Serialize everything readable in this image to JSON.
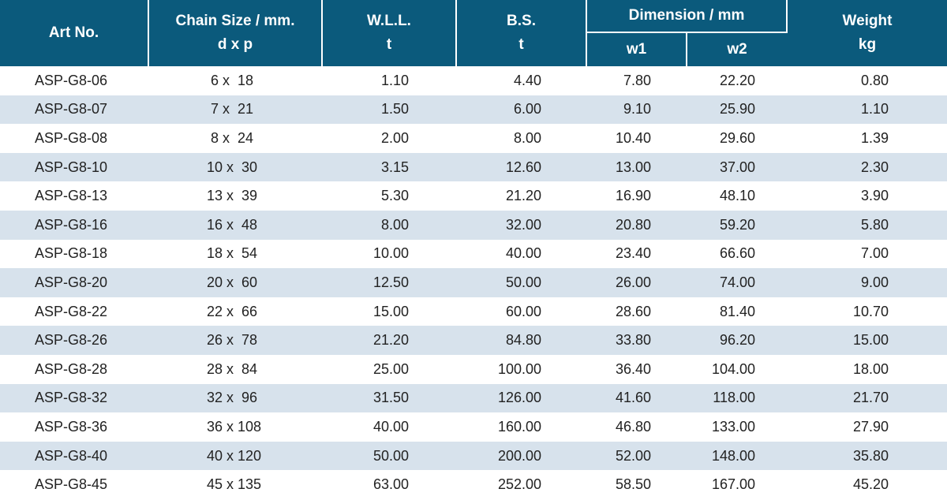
{
  "headers": {
    "art_no": "Art No.",
    "chain_size_line1": "Chain Size / mm.",
    "chain_size_line2": "d x p",
    "wll_line1": "W.L.L.",
    "wll_line2": "t",
    "bs_line1": "B.S.",
    "bs_line2": "t",
    "dimension": "Dimension / mm",
    "w1": "w1",
    "w2": "w2",
    "weight_line1": "Weight",
    "weight_line2": "kg"
  },
  "rows": [
    {
      "art": "ASP-G8-06",
      "size": " 6 x  18",
      "wll": "1.10",
      "bs": "4.40",
      "w1": "7.80",
      "w2": "22.20",
      "weight": "0.80"
    },
    {
      "art": "ASP-G8-07",
      "size": " 7 x  21",
      "wll": "1.50",
      "bs": "6.00",
      "w1": "9.10",
      "w2": "25.90",
      "weight": "1.10"
    },
    {
      "art": "ASP-G8-08",
      "size": " 8 x  24",
      "wll": "2.00",
      "bs": "8.00",
      "w1": "10.40",
      "w2": "29.60",
      "weight": "1.39"
    },
    {
      "art": "ASP-G8-10",
      "size": "10 x  30",
      "wll": "3.15",
      "bs": "12.60",
      "w1": "13.00",
      "w2": "37.00",
      "weight": "2.30"
    },
    {
      "art": "ASP-G8-13",
      "size": "13 x  39",
      "wll": "5.30",
      "bs": "21.20",
      "w1": "16.90",
      "w2": "48.10",
      "weight": "3.90"
    },
    {
      "art": "ASP-G8-16",
      "size": "16 x  48",
      "wll": "8.00",
      "bs": "32.00",
      "w1": "20.80",
      "w2": "59.20",
      "weight": "5.80"
    },
    {
      "art": "ASP-G8-18",
      "size": "18 x  54",
      "wll": "10.00",
      "bs": "40.00",
      "w1": "23.40",
      "w2": "66.60",
      "weight": "7.00"
    },
    {
      "art": "ASP-G8-20",
      "size": "20 x  60",
      "wll": "12.50",
      "bs": "50.00",
      "w1": "26.00",
      "w2": "74.00",
      "weight": "9.00"
    },
    {
      "art": "ASP-G8-22",
      "size": "22 x  66",
      "wll": "15.00",
      "bs": "60.00",
      "w1": "28.60",
      "w2": "81.40",
      "weight": "10.70"
    },
    {
      "art": "ASP-G8-26",
      "size": "26 x  78",
      "wll": "21.20",
      "bs": "84.80",
      "w1": "33.80",
      "w2": "96.20",
      "weight": "15.00"
    },
    {
      "art": "ASP-G8-28",
      "size": "28 x  84",
      "wll": "25.00",
      "bs": "100.00",
      "w1": "36.40",
      "w2": "104.00",
      "weight": "18.00"
    },
    {
      "art": "ASP-G8-32",
      "size": "32 x  96",
      "wll": "31.50",
      "bs": "126.00",
      "w1": "41.60",
      "w2": "118.00",
      "weight": "21.70"
    },
    {
      "art": "ASP-G8-36",
      "size": "36 x 108",
      "wll": "40.00",
      "bs": "160.00",
      "w1": "46.80",
      "w2": "133.00",
      "weight": "27.90"
    },
    {
      "art": "ASP-G8-40",
      "size": "40 x 120",
      "wll": "50.00",
      "bs": "200.00",
      "w1": "52.00",
      "w2": "148.00",
      "weight": "35.80"
    },
    {
      "art": "ASP-G8-45",
      "size": "45 x 135",
      "wll": "63.00",
      "bs": "252.00",
      "w1": "58.50",
      "w2": "167.00",
      "weight": "45.20"
    }
  ],
  "colors": {
    "header_bg": "#0b5a7c",
    "header_text": "#ffffff",
    "stripe": "#d7e2ec"
  }
}
